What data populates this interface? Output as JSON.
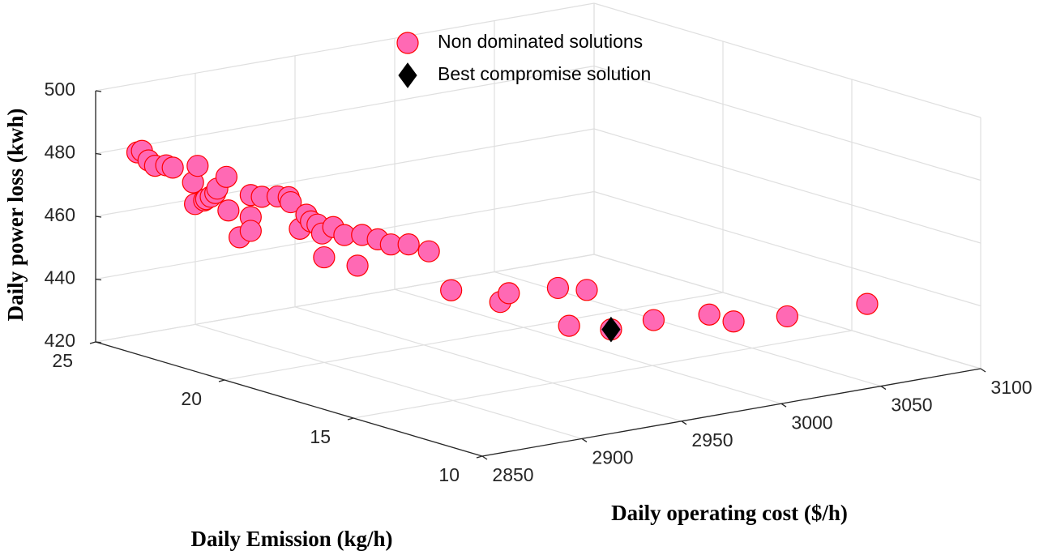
{
  "chart_data": {
    "type": "scatter3d",
    "xlabel": "Daily operating cost ($/h)",
    "ylabel": "Daily Emission (kg/h)",
    "zlabel": "Daily power loss (kwh)",
    "xlim": [
      2850,
      3100
    ],
    "ylim": [
      10,
      25
    ],
    "zlim": [
      420,
      500
    ],
    "xticks": [
      2850,
      2900,
      2950,
      3000,
      3050,
      3100
    ],
    "yticks": [
      10,
      15,
      20,
      25
    ],
    "zticks": [
      420,
      440,
      460,
      480,
      500
    ],
    "grid": true,
    "legend": "top",
    "series": [
      {
        "name": "Non dominated solutions",
        "marker": "circle",
        "color": "#ff69b4",
        "edgecolor": "#ff0000",
        "x": [
          2858,
          2859,
          2861,
          2863,
          2866,
          2868,
          2873,
          2874,
          2874,
          2876,
          2877,
          2878,
          2879,
          2880,
          2882,
          2883,
          2886,
          2889,
          2889,
          2889,
          2892,
          2896,
          2899,
          2900,
          2902,
          2904,
          2905,
          2907,
          2908,
          2909,
          2911,
          2914,
          2918,
          2919,
          2923,
          2927,
          2932,
          2937,
          2943,
          2956,
          2959,
          2972,
          2975,
          2980,
          2987,
          2998,
          3013,
          3020,
          3034,
          3056
        ],
        "y": [
          24.0,
          23.9,
          23.8,
          23.7,
          23.5,
          23.4,
          23.0,
          22.9,
          23.0,
          22.8,
          22.8,
          22.7,
          22.6,
          22.6,
          22.4,
          22.4,
          22.2,
          22.0,
          22.0,
          22.0,
          21.8,
          21.5,
          21.3,
          21.3,
          21.1,
          21.0,
          20.9,
          20.8,
          20.7,
          20.7,
          20.5,
          20.3,
          20.1,
          20.0,
          19.7,
          19.5,
          19.2,
          18.8,
          18.4,
          17.5,
          17.4,
          16.5,
          16.3,
          16.0,
          15.6,
          14.8,
          13.8,
          13.4,
          12.4,
          11.0
        ],
        "z": [
          481.9,
          482.5,
          479.5,
          477.8,
          478.1,
          477.4,
          473.1,
          478.5,
          466.1,
          467.5,
          467.8,
          468.7,
          470.0,
          471.3,
          475.3,
          464.5,
          456.1,
          462.7,
          458.3,
          469.7,
          469.3,
          469.7,
          469.6,
          467.9,
          459.7,
          464.2,
          462.2,
          461.2,
          458.5,
          450.8,
          460.7,
          458.3,
          448.6,
          458.5,
          457.4,
          455.8,
          456.0,
          454.2,
          442.1,
          439.1,
          441.8,
          444.2,
          432.3,
          443.9,
          431.5,
          435.2,
          437.7,
          435.7,
          438.2,
          443.1
        ]
      },
      {
        "name": "Best compromise solution",
        "marker": "diamond",
        "color": "#000000",
        "edgecolor": "#000000",
        "x": [
          2987
        ],
        "y": [
          15.6
        ],
        "z": [
          431.5
        ]
      }
    ]
  }
}
